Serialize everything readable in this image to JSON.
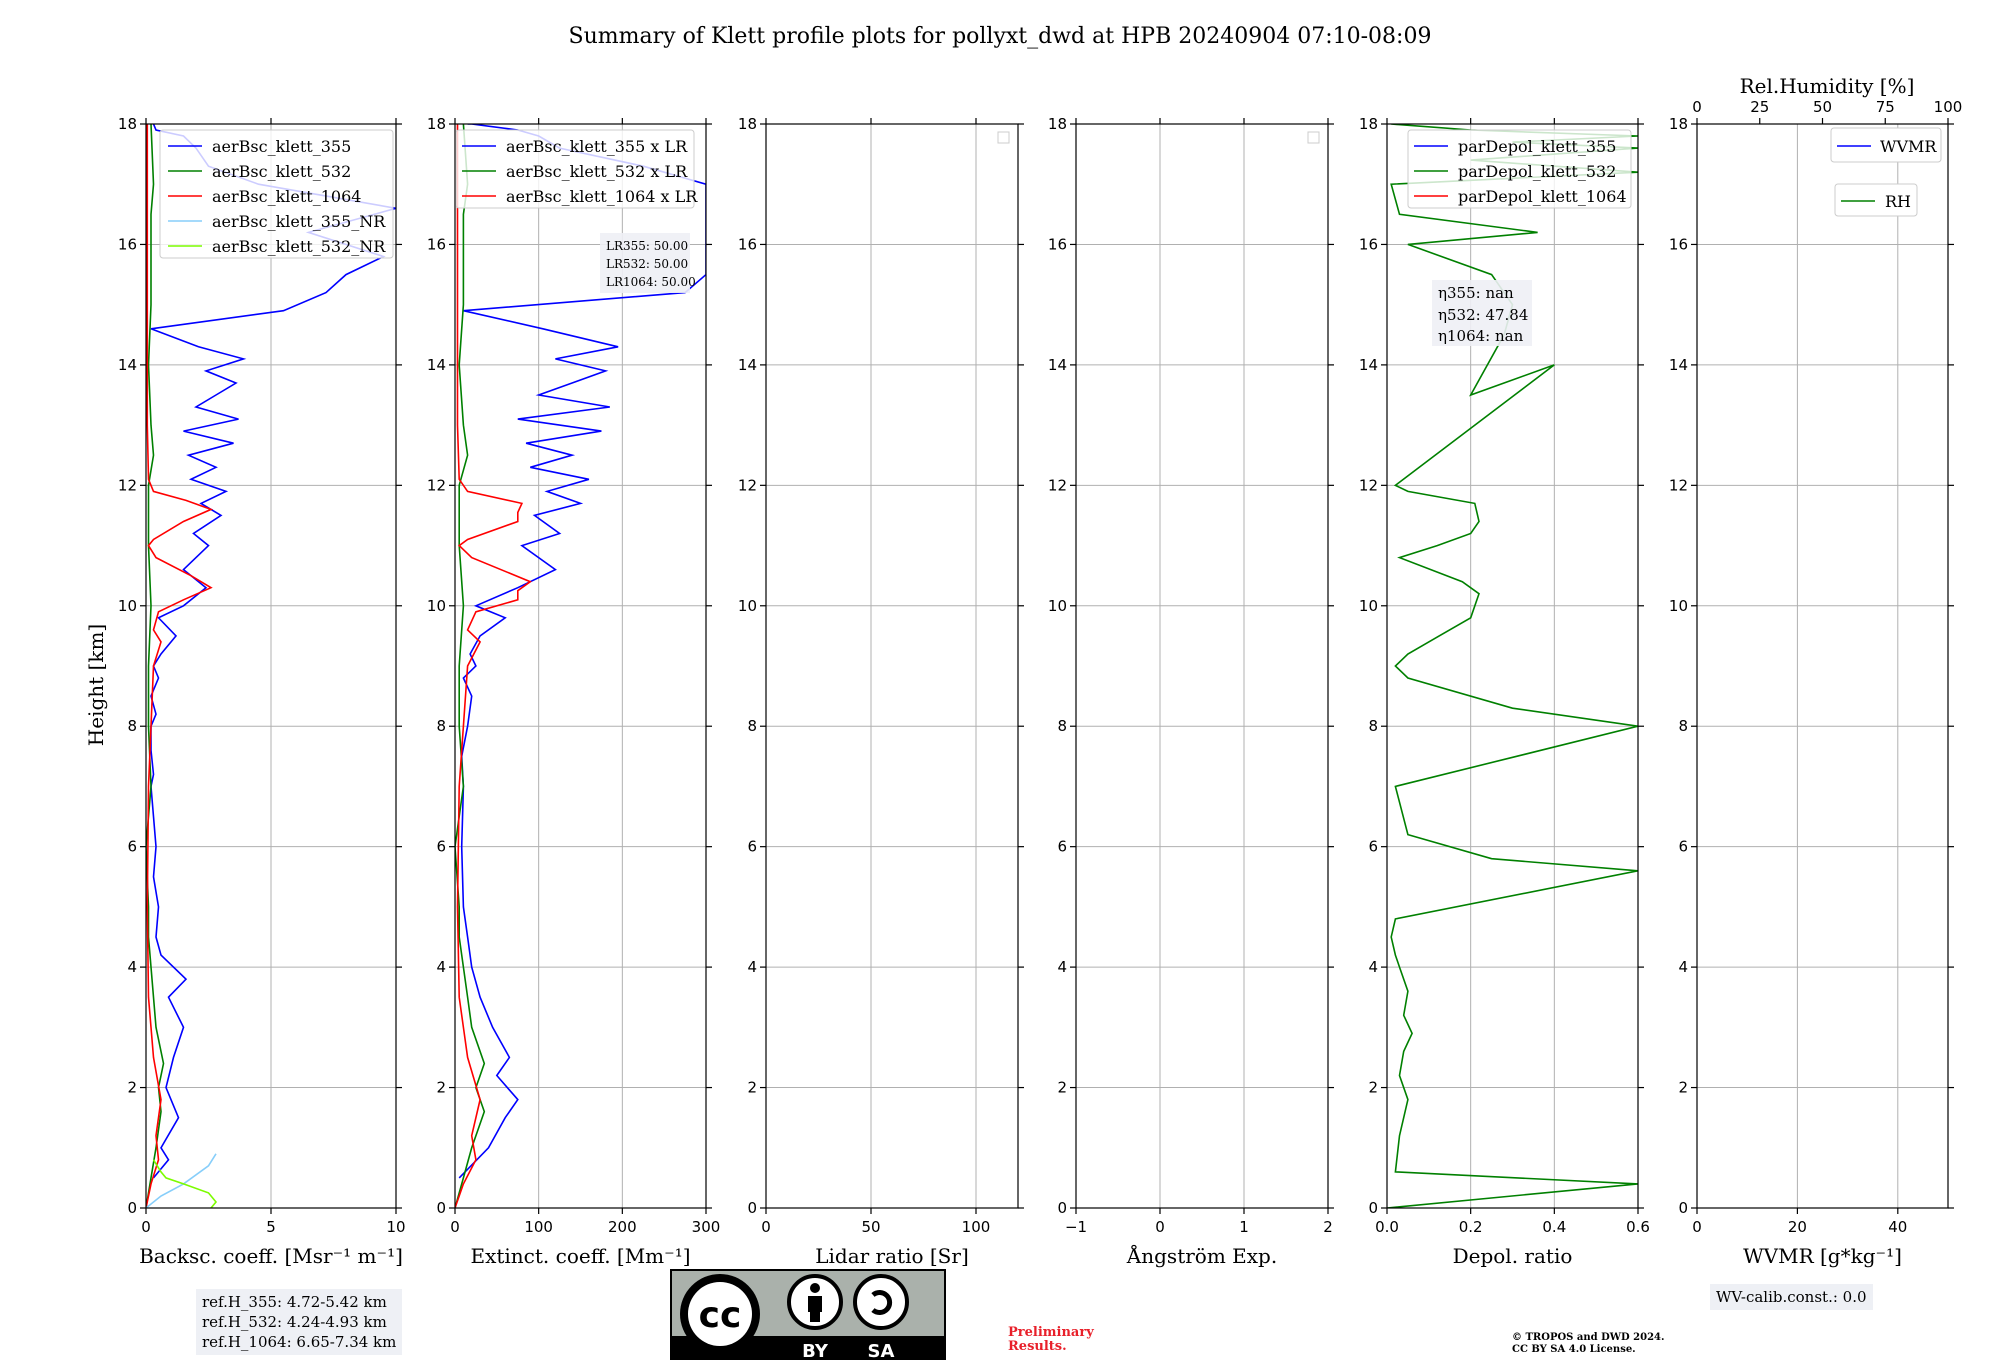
{
  "title": "Summary of Klett profile plots for pollyxt_dwd at HPB 20240904 07:10-08:09",
  "chart_data": [
    {
      "type": "line",
      "id": "bsc",
      "xlabel": "Backsc. coeff. [Msr⁻¹ m⁻¹]",
      "ylabel": "Height [km]",
      "xlim": [
        0,
        10
      ],
      "ylim": [
        0,
        18
      ],
      "xticks": [
        "0",
        "5",
        "10"
      ],
      "yticks": [
        "0",
        "2",
        "4",
        "6",
        "8",
        "10",
        "12",
        "14",
        "16",
        "18"
      ],
      "legend": [
        "aerBsc_klett_355",
        "aerBsc_klett_532",
        "aerBsc_klett_1064",
        "aerBsc_klett_355_NR",
        "aerBsc_klett_532_NR"
      ],
      "legend_position": "top-right",
      "series": [
        {
          "name": "aerBsc_klett_355",
          "color": "#0000ff",
          "x": [
            0.3,
            0.9,
            0.6,
            1.3,
            0.8,
            1.1,
            1.5,
            0.9,
            1.6,
            0.6,
            0.4,
            0.5,
            0.3,
            0.4,
            0.3,
            0.2,
            0.3,
            0.2,
            0.2,
            0.4,
            0.2,
            0.5,
            0.3,
            0.6,
            1.2,
            0.5,
            1.5,
            2.4,
            1.5,
            2.5,
            1.9,
            3.0,
            2.2,
            3.2,
            1.8,
            2.8,
            1.7,
            3.5,
            1.5,
            3.7,
            2.0,
            2.8,
            3.6,
            2.4,
            3.9,
            2.1,
            0.2,
            5.5,
            7.2,
            8.0,
            9.5,
            6.5,
            10.0,
            4.5,
            2.5,
            2.0,
            1.5,
            0.4,
            0.3
          ],
          "y": [
            0.5,
            0.8,
            1.0,
            1.5,
            2.0,
            2.5,
            3.0,
            3.5,
            3.8,
            4.2,
            4.5,
            5.0,
            5.5,
            6.0,
            6.5,
            7.0,
            7.2,
            7.6,
            8.0,
            8.2,
            8.5,
            8.8,
            9.0,
            9.2,
            9.5,
            9.8,
            10.0,
            10.3,
            10.6,
            11.0,
            11.2,
            11.5,
            11.7,
            11.9,
            12.1,
            12.3,
            12.5,
            12.7,
            12.9,
            13.1,
            13.3,
            13.5,
            13.7,
            13.9,
            14.1,
            14.3,
            14.6,
            14.9,
            15.2,
            15.5,
            15.8,
            16.2,
            16.6,
            17.0,
            17.3,
            17.6,
            17.8,
            17.9,
            18.0
          ]
        },
        {
          "name": "aerBsc_klett_532",
          "color": "#008000",
          "x": [
            0.0,
            0.2,
            0.4,
            0.6,
            0.5,
            0.7,
            0.4,
            0.3,
            0.2,
            0.1,
            0.1,
            0.0,
            0.2,
            0.1,
            0.1,
            0.2,
            0.1,
            0.1,
            0.3,
            0.2,
            0.1,
            0.2,
            0.2,
            0.2,
            0.3,
            0.2
          ],
          "y": [
            0.0,
            0.5,
            1.0,
            1.6,
            2.0,
            2.4,
            3.0,
            3.5,
            4.0,
            4.5,
            5.0,
            6.0,
            7.0,
            8.0,
            9.0,
            10.0,
            11.0,
            12.0,
            12.5,
            13.0,
            14.0,
            15.0,
            16.0,
            16.5,
            17.0,
            18.0
          ]
        },
        {
          "name": "aerBsc_klett_1064",
          "color": "#ff0000",
          "x": [
            0.0,
            0.2,
            0.5,
            0.4,
            0.6,
            0.3,
            0.2,
            0.1,
            0.05,
            0.1,
            0.3,
            0.6,
            0.3,
            0.5,
            1.5,
            2.6,
            1.8,
            0.4,
            0.1,
            0.3,
            1.5,
            2.6,
            1.6,
            0.3,
            0.1,
            0.05,
            0.05
          ],
          "y": [
            0.0,
            0.4,
            0.8,
            1.2,
            1.8,
            2.5,
            3.0,
            3.5,
            5.0,
            7.0,
            9.0,
            9.4,
            9.6,
            9.9,
            10.1,
            10.3,
            10.5,
            10.8,
            11.0,
            11.1,
            11.4,
            11.6,
            11.75,
            11.9,
            12.1,
            13.0,
            18.0
          ]
        },
        {
          "name": "aerBsc_klett_355_NR",
          "color": "#87cefa",
          "x": [
            0.0,
            0.6,
            1.5,
            2.5,
            2.8
          ],
          "y": [
            0.0,
            0.2,
            0.4,
            0.7,
            0.9
          ]
        },
        {
          "name": "aerBsc_klett_532_NR",
          "color": "#7cfc00",
          "x": [
            2.6,
            2.8,
            2.5,
            1.5,
            0.8,
            0.6,
            0.3
          ],
          "y": [
            0.0,
            0.1,
            0.25,
            0.4,
            0.5,
            0.6,
            0.8
          ]
        }
      ],
      "notes": [
        "ref.H_355: 4.72-5.42 km",
        "ref.H_532: 4.24-4.93 km",
        "ref.H_1064: 6.65-7.34 km"
      ]
    },
    {
      "type": "line",
      "id": "ext",
      "xlabel": "Extinct. coeff. [Mm⁻¹]",
      "xlim": [
        0,
        300
      ],
      "ylim": [
        0,
        18
      ],
      "xticks": [
        "0",
        "100",
        "200",
        "300"
      ],
      "yticks": [
        "0",
        "2",
        "4",
        "6",
        "8",
        "10",
        "12",
        "14",
        "16",
        "18"
      ],
      "legend": [
        "aerBsc_klett_355 x LR",
        "aerBsc_klett_532 x LR",
        "aerBsc_klett_1064 x LR"
      ],
      "legend_position": "top-right",
      "annotation": [
        "LR355: 50.00",
        "LR532: 50.00",
        "LR1064: 50.00"
      ],
      "series": [
        {
          "name": "aerBsc_klett_355 x LR",
          "color": "#0000ff",
          "x": [
            5,
            40,
            60,
            75,
            50,
            65,
            45,
            30,
            20,
            15,
            10,
            8,
            10,
            8,
            15,
            20,
            10,
            25,
            18,
            30,
            60,
            25,
            75,
            120,
            80,
            125,
            95,
            150,
            110,
            160,
            90,
            140,
            85,
            175,
            75,
            185,
            100,
            140,
            180,
            120,
            195,
            105,
            10,
            275,
            300,
            300,
            300,
            300,
            300,
            225,
            125,
            100,
            75,
            20,
            15
          ],
          "y": [
            0.5,
            1.0,
            1.5,
            1.8,
            2.2,
            2.5,
            3.0,
            3.5,
            4.0,
            4.5,
            5.0,
            6.0,
            7.0,
            7.5,
            8.0,
            8.5,
            8.8,
            9.0,
            9.2,
            9.5,
            9.8,
            10.0,
            10.3,
            10.6,
            11.0,
            11.2,
            11.5,
            11.7,
            11.9,
            12.1,
            12.3,
            12.5,
            12.7,
            12.9,
            13.1,
            13.3,
            13.5,
            13.7,
            13.9,
            14.1,
            14.3,
            14.6,
            14.9,
            15.2,
            15.5,
            15.8,
            16.2,
            16.6,
            17.0,
            17.3,
            17.6,
            17.8,
            17.9,
            18.0,
            18.0
          ]
        },
        {
          "name": "aerBsc_klett_532 x LR",
          "color": "#008000",
          "x": [
            0,
            10,
            20,
            35,
            25,
            35,
            20,
            15,
            10,
            5,
            5,
            0,
            10,
            5,
            5,
            10,
            5,
            5,
            15,
            10,
            5,
            10,
            10,
            10,
            15,
            10
          ],
          "y": [
            0.0,
            0.5,
            1.0,
            1.6,
            2.0,
            2.4,
            3.0,
            3.5,
            4.0,
            4.5,
            5.0,
            6.0,
            7.0,
            8.0,
            9.0,
            10.0,
            11.0,
            12.0,
            12.5,
            13.0,
            14.0,
            15.0,
            16.0,
            16.5,
            17.0,
            18.0
          ]
        },
        {
          "name": "aerBsc_klett_1064 x LR",
          "color": "#ff0000",
          "x": [
            0,
            10,
            25,
            20,
            30,
            15,
            10,
            5,
            3,
            5,
            15,
            30,
            15,
            25,
            75,
            75,
            90,
            20,
            5,
            15,
            75,
            75,
            80,
            15,
            5,
            3,
            3
          ],
          "y": [
            0.0,
            0.4,
            0.8,
            1.2,
            1.8,
            2.5,
            3.0,
            3.5,
            5.0,
            7.0,
            9.0,
            9.4,
            9.6,
            9.9,
            10.1,
            10.25,
            10.4,
            10.8,
            11.0,
            11.1,
            11.4,
            11.55,
            11.7,
            11.9,
            12.1,
            13.0,
            18.0
          ]
        }
      ]
    },
    {
      "type": "line",
      "id": "lr",
      "xlabel": "Lidar ratio [Sr]",
      "xlim": [
        0,
        120
      ],
      "ylim": [
        0,
        18
      ],
      "xticks": [
        "0",
        "50",
        "100"
      ],
      "yticks": [
        "0",
        "2",
        "4",
        "6",
        "8",
        "10",
        "12",
        "14",
        "16",
        "18"
      ],
      "series": []
    },
    {
      "type": "line",
      "id": "ang",
      "xlabel": "Ångström Exp.",
      "xlim": [
        -1,
        2
      ],
      "ylim": [
        0,
        18
      ],
      "xticks": [
        "−1",
        "0",
        "1",
        "2"
      ],
      "yticks": [
        "0",
        "2",
        "4",
        "6",
        "8",
        "10",
        "12",
        "14",
        "16",
        "18"
      ],
      "series": []
    },
    {
      "type": "line",
      "id": "depol",
      "xlabel": "Depol. ratio",
      "xlim": [
        0.0,
        0.6
      ],
      "ylim": [
        0,
        18
      ],
      "xticks": [
        "0.0",
        "0.2",
        "0.4",
        "0.6"
      ],
      "yticks": [
        "0",
        "2",
        "4",
        "6",
        "8",
        "10",
        "12",
        "14",
        "16",
        "18"
      ],
      "legend": [
        "parDepol_klett_355",
        "parDepol_klett_532",
        "parDepol_klett_1064"
      ],
      "legend_position": "top-right",
      "annotation": [
        "η355: nan",
        "η532: 47.84",
        "η1064: nan"
      ],
      "series": [
        {
          "name": "parDepol_klett_532",
          "color": "#008000",
          "x": [
            0.0,
            0.6,
            0.02,
            0.03,
            0.05,
            0.03,
            0.04,
            0.06,
            0.04,
            0.05,
            0.03,
            0.02,
            0.01,
            0.02,
            0.6,
            0.25,
            0.05,
            0.02,
            0.6,
            0.3,
            0.05,
            0.02,
            0.05,
            0.1,
            0.2,
            0.22,
            0.18,
            0.03,
            0.12,
            0.2,
            0.22,
            0.21,
            0.05,
            0.02,
            0.4,
            0.2,
            0.28,
            0.3,
            0.25,
            0.05,
            0.36,
            0.03,
            0.01,
            0.6,
            0.2,
            0.6,
            0.3,
            0.6,
            0.2,
            0.01
          ],
          "y": [
            0.0,
            0.4,
            0.6,
            1.2,
            1.8,
            2.2,
            2.6,
            2.9,
            3.2,
            3.6,
            4.0,
            4.2,
            4.5,
            4.8,
            5.6,
            5.8,
            6.2,
            7.0,
            8.0,
            8.3,
            8.8,
            9.0,
            9.2,
            9.4,
            9.8,
            10.2,
            10.4,
            10.8,
            11.0,
            11.2,
            11.4,
            11.7,
            11.9,
            12.0,
            14.0,
            13.5,
            14.5,
            15.0,
            15.5,
            16.0,
            16.2,
            16.5,
            17.0,
            17.2,
            17.4,
            17.6,
            17.7,
            17.8,
            17.9,
            18.0
          ]
        }
      ]
    },
    {
      "type": "line",
      "id": "wv",
      "xlabel": "WVMR [g*kg⁻¹]",
      "xlim": [
        0,
        50
      ],
      "ylim": [
        0,
        18
      ],
      "xticks": [
        "0",
        "20",
        "40"
      ],
      "yticks": [
        "0",
        "2",
        "4",
        "6",
        "8",
        "10",
        "12",
        "14",
        "16",
        "18"
      ],
      "top_axis_label": "Rel.Humidity [%]",
      "top_xticks": [
        "0",
        "25",
        "50",
        "75",
        "100"
      ],
      "legend": [
        "WVMR",
        "RH"
      ],
      "legend_position": "top-right",
      "notes": [
        "WV-calib.const.: 0.0"
      ],
      "series": []
    }
  ],
  "license": {
    "by": "BY",
    "sa": "SA",
    "cc": "cc"
  },
  "preliminary": [
    "Preliminary",
    "Results."
  ],
  "copyright": [
    "© TROPOS and DWD 2024.",
    "CC BY SA 4.0 License."
  ]
}
